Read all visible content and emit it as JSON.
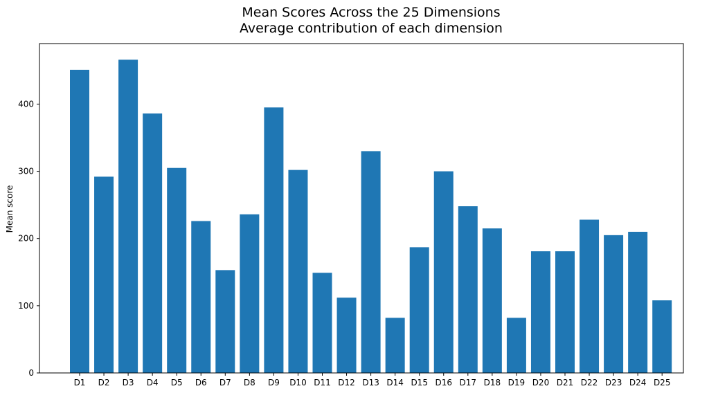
{
  "chart_data": {
    "type": "bar",
    "title": "Mean Scores Across the 25 Dimensions",
    "subtitle": "Average contribution of each dimension",
    "xlabel": "",
    "ylabel": "Mean score",
    "ylim": [
      0,
      490
    ],
    "yticks": [
      0,
      100,
      200,
      300,
      400
    ],
    "grid": false,
    "bar_color": "#1f77b4",
    "categories": [
      "D1",
      "D2",
      "D3",
      "D4",
      "D5",
      "D6",
      "D7",
      "D8",
      "D9",
      "D10",
      "D11",
      "D12",
      "D13",
      "D14",
      "D15",
      "D16",
      "D17",
      "D18",
      "D19",
      "D20",
      "D21",
      "D22",
      "D23",
      "D24",
      "D25"
    ],
    "values": [
      451,
      292,
      466,
      386,
      305,
      226,
      153,
      236,
      395,
      302,
      149,
      112,
      330,
      82,
      187,
      300,
      248,
      215,
      82,
      181,
      181,
      228,
      205,
      210,
      108
    ]
  }
}
